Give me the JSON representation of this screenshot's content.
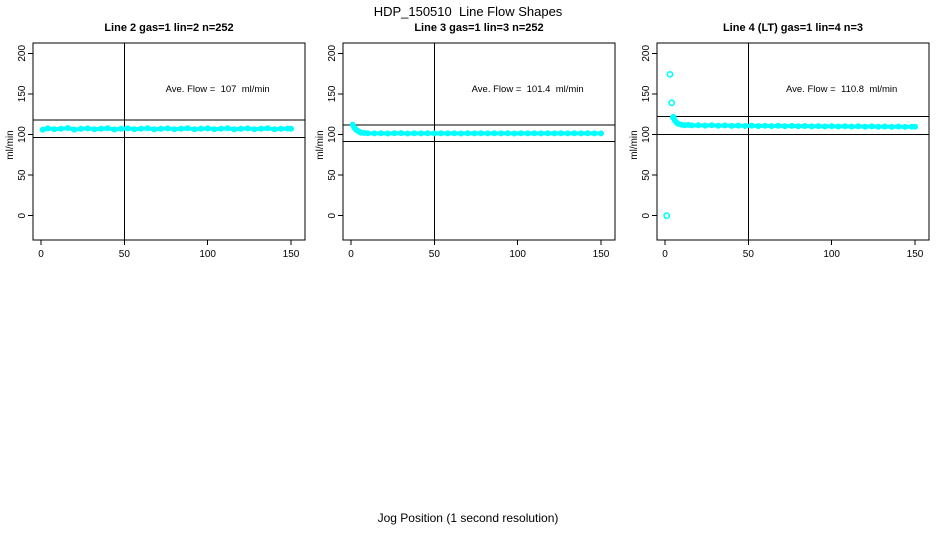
{
  "page": {
    "title": "HDP_150510  Line Flow Shapes",
    "xlabel": "Jog Position (1 second resolution)",
    "background": "#ffffff",
    "point_color": "#00ffff",
    "axis_color": "#000000"
  },
  "chart_data": [
    {
      "type": "scatter",
      "title": "Line 2 gas=1 lin=2 n=252",
      "annotation": "Ave. Flow =  107  ml/min",
      "ave_flow": 107,
      "n": 252,
      "ylabel": "ml/min",
      "xlim": [
        0,
        150
      ],
      "ylim": [
        0,
        200
      ],
      "x_ticks": [
        0,
        50,
        100,
        150
      ],
      "y_ticks": [
        0,
        50,
        100,
        150,
        200
      ],
      "vline_x": 50,
      "hlines": [
        117.7,
        96.3
      ],
      "trend": [
        [
          1,
          106
        ],
        [
          4,
          107.5
        ],
        [
          8,
          106.5
        ],
        [
          12,
          107
        ],
        [
          16,
          108
        ],
        [
          20,
          106
        ],
        [
          24,
          107
        ],
        [
          28,
          107.5
        ],
        [
          32,
          106.5
        ],
        [
          36,
          107
        ],
        [
          40,
          107.8
        ],
        [
          44,
          106.2
        ],
        [
          48,
          107
        ],
        [
          52,
          107.5
        ],
        [
          56,
          106.5
        ],
        [
          60,
          107
        ],
        [
          64,
          107.8
        ],
        [
          68,
          106.3
        ],
        [
          72,
          107
        ],
        [
          76,
          107.5
        ],
        [
          80,
          106.5
        ],
        [
          84,
          107
        ],
        [
          88,
          107.6
        ],
        [
          92,
          106.4
        ],
        [
          96,
          107
        ],
        [
          100,
          107.5
        ],
        [
          104,
          106.5
        ],
        [
          108,
          107
        ],
        [
          112,
          107.7
        ],
        [
          116,
          106.3
        ],
        [
          120,
          107
        ],
        [
          124,
          107.5
        ],
        [
          128,
          106.5
        ],
        [
          132,
          107
        ],
        [
          136,
          107.6
        ],
        [
          140,
          106.4
        ],
        [
          144,
          107
        ],
        [
          148,
          107.3
        ],
        [
          150,
          107
        ]
      ],
      "outliers": []
    },
    {
      "type": "scatter",
      "title": "Line 3 gas=1 lin=3 n=252",
      "annotation": "Ave. Flow =  101.4  ml/min",
      "ave_flow": 101.4,
      "n": 252,
      "ylabel": "ml/min",
      "xlim": [
        0,
        150
      ],
      "ylim": [
        0,
        200
      ],
      "x_ticks": [
        0,
        50,
        100,
        150
      ],
      "y_ticks": [
        0,
        50,
        100,
        150,
        200
      ],
      "vline_x": 50,
      "hlines": [
        111.5,
        91.3
      ],
      "trend": [
        [
          1,
          112
        ],
        [
          2,
          108.5
        ],
        [
          3,
          106
        ],
        [
          4,
          104.5
        ],
        [
          5,
          103.2
        ],
        [
          6,
          102.4
        ],
        [
          8,
          101.8
        ],
        [
          10,
          101.5
        ],
        [
          14,
          101.3
        ],
        [
          18,
          101.6
        ],
        [
          22,
          101.2
        ],
        [
          26,
          101.5
        ],
        [
          30,
          101.7
        ],
        [
          34,
          101.2
        ],
        [
          38,
          101.5
        ],
        [
          42,
          101.4
        ],
        [
          46,
          101.6
        ],
        [
          50,
          101.3
        ],
        [
          54,
          101.5
        ],
        [
          58,
          101.4
        ],
        [
          62,
          101.6
        ],
        [
          66,
          101.2
        ],
        [
          70,
          101.5
        ],
        [
          74,
          101.4
        ],
        [
          78,
          101.6
        ],
        [
          82,
          101.3
        ],
        [
          86,
          101.5
        ],
        [
          90,
          101.4
        ],
        [
          94,
          101.6
        ],
        [
          98,
          101.2
        ],
        [
          102,
          101.5
        ],
        [
          106,
          101.4
        ],
        [
          110,
          101.6
        ],
        [
          114,
          101.3
        ],
        [
          118,
          101.5
        ],
        [
          122,
          101.4
        ],
        [
          126,
          101.6
        ],
        [
          130,
          101.3
        ],
        [
          134,
          101.5
        ],
        [
          138,
          101.4
        ],
        [
          142,
          101.6
        ],
        [
          146,
          101.3
        ],
        [
          150,
          101.4
        ]
      ],
      "outliers": []
    },
    {
      "type": "scatter",
      "title": "Line 4 (LT) gas=1 lin=4 n=3",
      "annotation": "Ave. Flow =  110.8  ml/min",
      "ave_flow": 110.8,
      "n": 3,
      "ylabel": "ml/min",
      "xlim": [
        0,
        150
      ],
      "ylim": [
        0,
        200
      ],
      "x_ticks": [
        0,
        50,
        100,
        150
      ],
      "y_ticks": [
        0,
        50,
        100,
        150,
        200
      ],
      "vline_x": 50,
      "hlines": [
        121.9,
        99.7
      ],
      "trend": [
        [
          5,
          121
        ],
        [
          6,
          117
        ],
        [
          7,
          114.5
        ],
        [
          8,
          113
        ],
        [
          10,
          112
        ],
        [
          12,
          111.5
        ],
        [
          14,
          111.8
        ],
        [
          16,
          111.2
        ],
        [
          20,
          111.5
        ],
        [
          24,
          111
        ],
        [
          28,
          111.4
        ],
        [
          32,
          110.8
        ],
        [
          36,
          111.2
        ],
        [
          40,
          110.6
        ],
        [
          44,
          111
        ],
        [
          48,
          110.5
        ],
        [
          52,
          111
        ],
        [
          56,
          110.4
        ],
        [
          60,
          110.8
        ],
        [
          64,
          110.3
        ],
        [
          68,
          110.7
        ],
        [
          72,
          110.2
        ],
        [
          76,
          110.6
        ],
        [
          80,
          110.1
        ],
        [
          84,
          110.5
        ],
        [
          88,
          110
        ],
        [
          92,
          110.4
        ],
        [
          96,
          109.9
        ],
        [
          100,
          110.3
        ],
        [
          104,
          109.8
        ],
        [
          108,
          110.2
        ],
        [
          112,
          109.7
        ],
        [
          116,
          110.1
        ],
        [
          120,
          109.6
        ],
        [
          124,
          110
        ],
        [
          128,
          109.5
        ],
        [
          132,
          109.9
        ],
        [
          136,
          109.4
        ],
        [
          140,
          109.8
        ],
        [
          144,
          109.3
        ],
        [
          148,
          109.6
        ],
        [
          150,
          109.5
        ]
      ],
      "outliers": [
        [
          1,
          0
        ],
        [
          3,
          174
        ],
        [
          4,
          139
        ],
        [
          5,
          121
        ]
      ]
    }
  ]
}
